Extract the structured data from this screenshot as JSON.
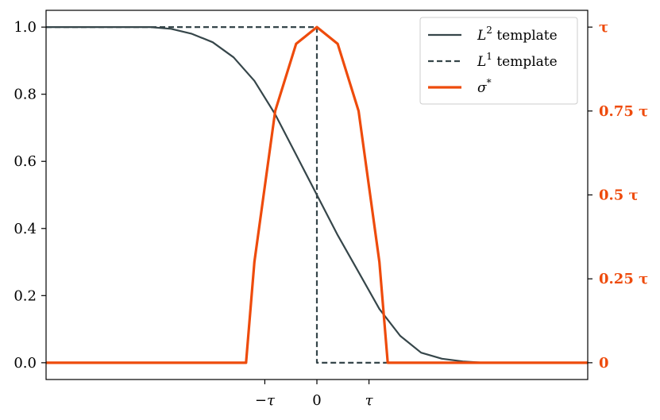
{
  "chart_data": {
    "type": "line",
    "x_domain": [
      -1.3,
      1.3
    ],
    "xticks": [
      {
        "value": -0.25,
        "label": "−τ"
      },
      {
        "value": 0,
        "label": "0"
      },
      {
        "value": 0.25,
        "label": "τ"
      }
    ],
    "y_left": {
      "lim": [
        -0.05,
        1.05
      ],
      "ticks": [
        0.0,
        0.2,
        0.4,
        0.6,
        0.8,
        1.0
      ],
      "tick_labels": [
        "0.0",
        "0.2",
        "0.4",
        "0.6",
        "0.8",
        "1.0"
      ]
    },
    "y_right": {
      "lim": [
        -0.05,
        1.05
      ],
      "color": "#ee4b0c",
      "ticks": [
        0,
        0.25,
        0.5,
        0.75,
        1.0
      ],
      "tick_labels": [
        "0",
        "0.25 τ",
        "0.5 τ",
        "0.75 τ",
        "τ"
      ]
    },
    "legend": {
      "position": "upper right",
      "entries": [
        {
          "label_main": "L",
          "label_sup": "2",
          "label_rest": " template",
          "style": "solid",
          "color": "#36464a"
        },
        {
          "label_main": "L",
          "label_sup": "1",
          "label_rest": " template",
          "style": "dashed",
          "color": "#36464a"
        },
        {
          "label_main": "σ",
          "label_sup": "*",
          "label_rest": "",
          "style": "solid",
          "color": "#ee4b0c"
        }
      ]
    },
    "series": [
      {
        "style": "solid",
        "color": "#36464a",
        "axis": "left",
        "x": [
          -1.3,
          -0.8,
          -0.7,
          -0.6,
          -0.5,
          -0.4,
          -0.3,
          -0.2,
          -0.1,
          0.0,
          0.1,
          0.2,
          0.3,
          0.4,
          0.5,
          0.6,
          0.7,
          0.8,
          1.3
        ],
        "y": [
          1.0,
          1.0,
          0.995,
          0.98,
          0.955,
          0.91,
          0.84,
          0.74,
          0.62,
          0.5,
          0.38,
          0.27,
          0.16,
          0.08,
          0.03,
          0.012,
          0.004,
          0.0,
          0.0
        ]
      },
      {
        "style": "dashed",
        "color": "#36464a",
        "axis": "left",
        "x": [
          -1.3,
          0.0,
          0.0,
          1.3
        ],
        "y": [
          1.0,
          1.0,
          0.0,
          0.0
        ]
      },
      {
        "style": "solid",
        "color": "#ee4b0c",
        "axis": "right",
        "x": [
          -1.3,
          -0.34,
          -0.3,
          -0.2,
          -0.1,
          0.0,
          0.1,
          0.2,
          0.3,
          0.34,
          1.3
        ],
        "y": [
          0.0,
          0.0,
          0.3,
          0.75,
          0.95,
          1.0,
          0.95,
          0.75,
          0.3,
          0.0,
          0.0
        ]
      }
    ]
  }
}
